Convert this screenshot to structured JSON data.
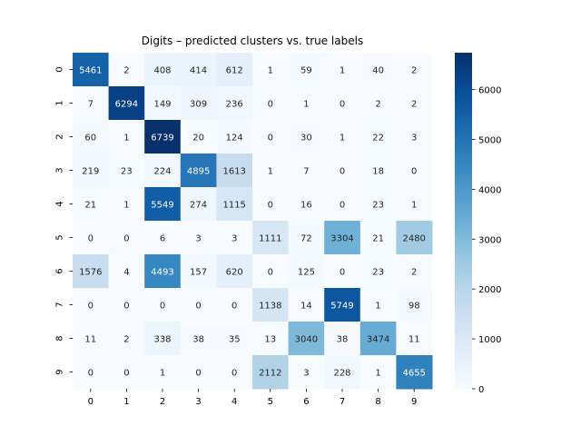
{
  "chart_data": {
    "type": "heatmap",
    "title": "Digits – predicted clusters vs. true labels",
    "xlabel": "",
    "ylabel": "",
    "x_categories": [
      "0",
      "1",
      "2",
      "3",
      "4",
      "5",
      "6",
      "7",
      "8",
      "9"
    ],
    "y_categories": [
      "0",
      "1",
      "2",
      "3",
      "4",
      "5",
      "6",
      "7",
      "8",
      "9"
    ],
    "values": [
      [
        5461,
        2,
        408,
        414,
        612,
        1,
        59,
        1,
        40,
        2
      ],
      [
        7,
        6294,
        149,
        309,
        236,
        0,
        1,
        0,
        2,
        2
      ],
      [
        60,
        1,
        6739,
        20,
        124,
        0,
        30,
        1,
        22,
        3
      ],
      [
        219,
        23,
        224,
        4895,
        1613,
        1,
        7,
        0,
        18,
        0
      ],
      [
        21,
        1,
        5549,
        274,
        1115,
        0,
        16,
        0,
        23,
        1
      ],
      [
        0,
        0,
        6,
        3,
        3,
        1111,
        72,
        3304,
        21,
        2480
      ],
      [
        1576,
        4,
        4493,
        157,
        620,
        0,
        125,
        0,
        23,
        2
      ],
      [
        0,
        0,
        0,
        0,
        0,
        1138,
        14,
        5749,
        1,
        98
      ],
      [
        11,
        2,
        338,
        38,
        35,
        13,
        3040,
        38,
        3474,
        11
      ],
      [
        0,
        0,
        1,
        0,
        0,
        2112,
        3,
        228,
        1,
        4655
      ]
    ],
    "colorscale": "Blues",
    "vmin": 0,
    "vmax": 6739,
    "colorbar_ticks": [
      "0",
      "1000",
      "2000",
      "3000",
      "4000",
      "5000",
      "6000"
    ],
    "annotations": true,
    "grid": false
  }
}
